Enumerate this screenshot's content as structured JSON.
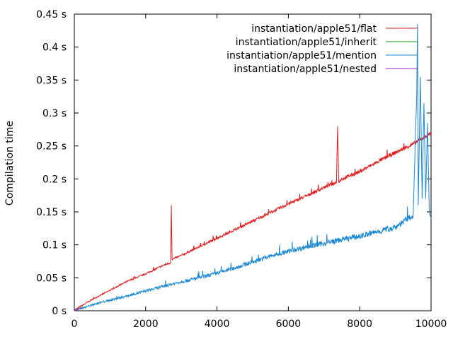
{
  "chart_data": {
    "type": "line",
    "ylabel": "Compilation time",
    "xlim": [
      0,
      10000
    ],
    "ylim": [
      0,
      0.45
    ],
    "x_ticks": [
      0,
      2000,
      4000,
      6000,
      8000,
      10000
    ],
    "x_tick_labels": [
      "0",
      "2000",
      "4000",
      "6000",
      "8000",
      "10000"
    ],
    "y_ticks": [
      0,
      0.05,
      0.1,
      0.15,
      0.2,
      0.25,
      0.3,
      0.35,
      0.4,
      0.45
    ],
    "y_tick_labels": [
      "0 s",
      "0.05 s",
      "0.1 s",
      "0.15 s",
      "0.2 s",
      "0.25 s",
      "0.3 s",
      "0.35 s",
      "0.4 s",
      "0.45 s"
    ],
    "grid": false,
    "legend_position": "top-right",
    "series": [
      {
        "name": "instantiation/apple51/flat",
        "color": "#e41a1c",
        "points": [
          [
            0,
            0.001
          ],
          [
            500,
            0.017
          ],
          [
            1000,
            0.031
          ],
          [
            1500,
            0.045
          ],
          [
            2000,
            0.056
          ],
          [
            2500,
            0.069
          ],
          [
            2700,
            0.073
          ],
          [
            2720,
            0.16
          ],
          [
            2740,
            0.078
          ],
          [
            3000,
            0.084
          ],
          [
            3500,
            0.097
          ],
          [
            4000,
            0.11
          ],
          [
            4500,
            0.123
          ],
          [
            5000,
            0.136
          ],
          [
            5500,
            0.149
          ],
          [
            6000,
            0.162
          ],
          [
            6500,
            0.174
          ],
          [
            7000,
            0.187
          ],
          [
            7350,
            0.195
          ],
          [
            7380,
            0.28
          ],
          [
            7410,
            0.196
          ],
          [
            7500,
            0.2
          ],
          [
            8000,
            0.211
          ],
          [
            8500,
            0.226
          ],
          [
            9000,
            0.24
          ],
          [
            9500,
            0.253
          ],
          [
            10000,
            0.27
          ]
        ]
      },
      {
        "name": "instantiation/apple51/inherit",
        "color": "#1a9e1a",
        "points": [
          [
            0,
            0.0
          ],
          [
            100,
            0.003
          ],
          [
            200,
            0.005
          ]
        ]
      },
      {
        "name": "instantiation/apple51/mention",
        "color": "#1a88d8",
        "points": [
          [
            0,
            0.0
          ],
          [
            500,
            0.009
          ],
          [
            1000,
            0.016
          ],
          [
            1500,
            0.023
          ],
          [
            2000,
            0.03
          ],
          [
            2500,
            0.037
          ],
          [
            3000,
            0.044
          ],
          [
            3500,
            0.05
          ],
          [
            4000,
            0.057
          ],
          [
            4500,
            0.065
          ],
          [
            5000,
            0.074
          ],
          [
            5500,
            0.083
          ],
          [
            6000,
            0.09
          ],
          [
            6500,
            0.097
          ],
          [
            7000,
            0.102
          ],
          [
            7500,
            0.108
          ],
          [
            8000,
            0.113
          ],
          [
            8500,
            0.12
          ],
          [
            9000,
            0.127
          ],
          [
            9500,
            0.145
          ],
          [
            9600,
            0.33
          ],
          [
            9620,
            0.435
          ],
          [
            9640,
            0.16
          ],
          [
            9700,
            0.355
          ],
          [
            9750,
            0.17
          ],
          [
            9800,
            0.315
          ],
          [
            9850,
            0.17
          ],
          [
            9900,
            0.285
          ],
          [
            9950,
            0.15
          ],
          [
            10000,
            0.14
          ]
        ]
      },
      {
        "name": "instantiation/apple51/nested",
        "color": "#a020c0",
        "points": [
          [
            0,
            0.0
          ],
          [
            100,
            0.002
          ],
          [
            200,
            0.004
          ]
        ]
      }
    ]
  }
}
